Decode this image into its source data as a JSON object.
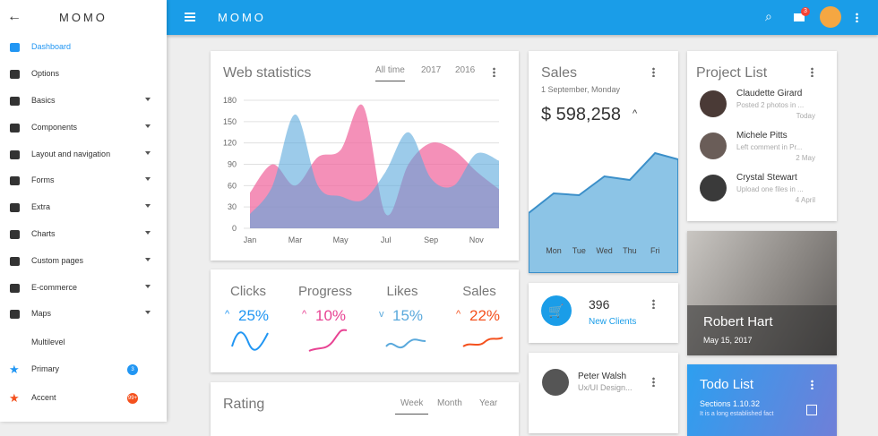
{
  "sidebar": {
    "brand": "MOMO",
    "items": [
      {
        "label": "Dashboard"
      },
      {
        "label": "Options"
      },
      {
        "label": "Basics"
      },
      {
        "label": "Components"
      },
      {
        "label": "Layout and navigation"
      },
      {
        "label": "Forms"
      },
      {
        "label": "Extra"
      },
      {
        "label": "Charts"
      },
      {
        "label": "Custom pages"
      },
      {
        "label": "E-commerce"
      },
      {
        "label": "Maps"
      },
      {
        "label": "Multilevel"
      },
      {
        "label": "Primary",
        "badge": 3
      },
      {
        "label": "Accent",
        "badge": "99+"
      }
    ]
  },
  "topbar": {
    "brand": "MOMO",
    "mail_badge": 3
  },
  "web_statistics": {
    "title": "Web statistics",
    "tabs": [
      "All time",
      "2017",
      "2016"
    ],
    "chart": {
      "type": "area",
      "categories": [
        "Jan",
        null,
        "Mar",
        null,
        "May",
        null,
        "Jul",
        null,
        "Sep",
        null,
        "Nov",
        null
      ],
      "ylim": [
        0,
        180
      ],
      "yticks": [
        0,
        30,
        60,
        90,
        120,
        150,
        180
      ],
      "grid": true,
      "series": [
        {
          "color": "#f06ba0",
          "values": [
            50,
            90,
            60,
            100,
            110,
            172,
            20,
            90,
            120,
            110,
            80,
            55
          ]
        },
        {
          "color": "#5aa9dc",
          "values": [
            20,
            60,
            160,
            60,
            45,
            40,
            80,
            135,
            70,
            60,
            105,
            95
          ]
        }
      ]
    }
  },
  "stats": [
    {
      "label": "Clicks",
      "value": "25%"
    },
    {
      "label": "Progress",
      "value": "10%"
    },
    {
      "label": "Likes",
      "value": "15%"
    },
    {
      "label": "Sales",
      "value": "22%"
    }
  ],
  "rating": {
    "title": "Rating",
    "tabs": [
      "Week",
      "Month",
      "Year"
    ]
  },
  "sales": {
    "title": "Sales",
    "date": "1 September, Monday",
    "amount": "$ 598,258",
    "chart": {
      "type": "area",
      "categories": [
        "Mon",
        "Tue",
        "Wed",
        "Thu",
        "Fri"
      ],
      "values": [
        89,
        87,
        108,
        104,
        134
      ]
    }
  },
  "new_clients": {
    "count": "396",
    "label": "New Clients"
  },
  "contact": {
    "name": "Peter Walsh",
    "role": "Ux/UI Design..."
  },
  "project_list": {
    "title": "Project List",
    "people": [
      {
        "name": "Claudette Girard",
        "text": "Posted 2 photos in ...",
        "time": "Today"
      },
      {
        "name": "Michele Pitts",
        "text": "Left comment in Pr...",
        "time": "2 May"
      },
      {
        "name": "Crystal Stewart",
        "text": "Upload one files in ...",
        "time": "4 April"
      }
    ]
  },
  "profile": {
    "name": "Robert Hart",
    "date": "May 15, 2017"
  },
  "todo": {
    "title": "Todo List",
    "section": "Sections 1.10.32",
    "text": "It is a long established fact"
  }
}
